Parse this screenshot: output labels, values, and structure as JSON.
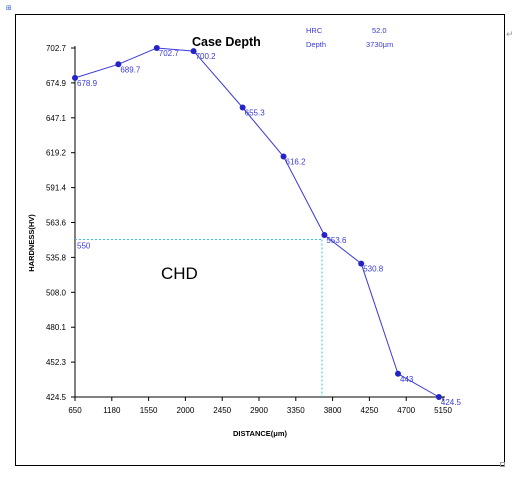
{
  "chart_data": {
    "type": "line",
    "title": "Case Depth",
    "xlabel": "DISTANCE(μm)",
    "ylabel": "HARDNESS(HV)",
    "xlim": [
      650,
      5150
    ],
    "ylim": [
      424.5,
      702.7
    ],
    "x_ticks": [
      "650",
      "1180",
      "1550",
      "2000",
      "2450",
      "2900",
      "3350",
      "3800",
      "4250",
      "4700",
      "5150"
    ],
    "y_ticks": [
      "424.5",
      "452.3",
      "480.1",
      "508.0",
      "535.8",
      "563.6",
      "591.4",
      "619.2",
      "647.1",
      "674.9",
      "702.7"
    ],
    "series": [
      {
        "x": [
          650,
          1180,
          1650,
          2100,
          2700,
          3200,
          3700,
          4150,
          4600,
          5100
        ],
        "y": [
          678.9,
          689.7,
          702.7,
          700.2,
          655.3,
          616.2,
          553.6,
          530.8,
          443,
          424.5
        ],
        "labels": [
          "678.9",
          "689.7",
          "702.7",
          "700.2",
          "655.3",
          "616.2",
          "553.6",
          "530.8",
          "443",
          "424.5"
        ],
        "color": "#3a3ad8"
      }
    ],
    "reference": {
      "x": 3670,
      "y": 550,
      "label": "550",
      "color": "#33c7d8"
    },
    "info": [
      {
        "key": "HRC",
        "value": "52.0"
      },
      {
        "key": "Depth",
        "value": "3730μm"
      }
    ],
    "annotation": "CHD",
    "grid": false
  },
  "marks": {
    "corner_tr": "↵"
  }
}
